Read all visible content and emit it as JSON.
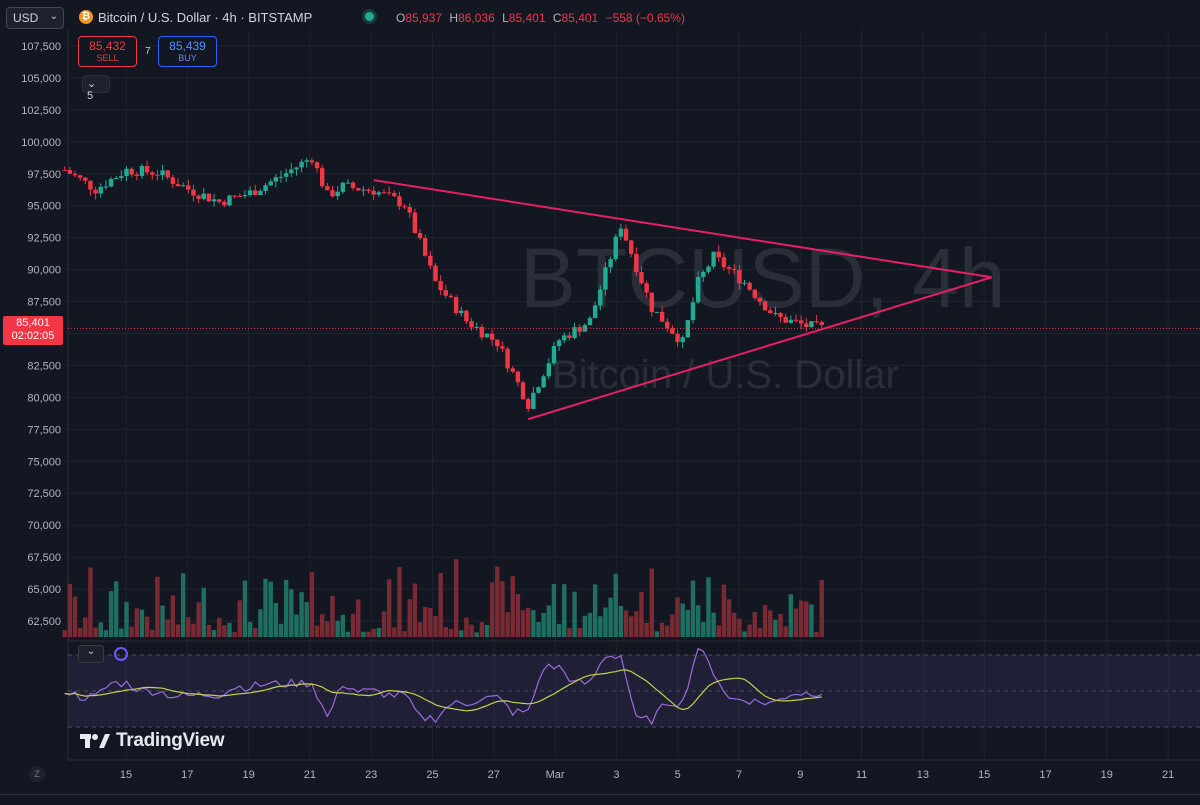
{
  "header": {
    "currency": "USD",
    "symbol_title": "Bitcoin / U.S. Dollar · 4h · BITSTAMP",
    "ohlc": [
      {
        "k": "O",
        "v": "85,937"
      },
      {
        "k": "H",
        "v": "86,036"
      },
      {
        "k": "L",
        "v": "85,401"
      },
      {
        "k": "C",
        "v": "85,401"
      }
    ],
    "change": "−558 (−0.65%)"
  },
  "trade": {
    "sell_price": "85,432",
    "sell_label": "SELL",
    "spread": "7",
    "buy_price": "85,439",
    "buy_label": "BUY"
  },
  "indicators_count": "5",
  "last_price": "85,401",
  "countdown": "02:02:05",
  "watermark": {
    "ticker": "BTCUSD, 4h",
    "name": "Bitcoin / U.S. Dollar"
  },
  "brand": "TradingView",
  "z_label": "Z",
  "colors": {
    "up": "#22ab94",
    "down": "#f23645",
    "trendline": "#e91e63",
    "rsi": "#9c6ade",
    "rsi_ma": "#c4d14a",
    "background": "#131722"
  },
  "chart_data": {
    "type": "candlestick",
    "title": "Bitcoin / U.S. Dollar · 4h · BITSTAMP",
    "y_ticks": [
      "107,500",
      "105,000",
      "102,500",
      "100,000",
      "97,500",
      "95,000",
      "92,500",
      "90,000",
      "87,500",
      "85,000",
      "82,500",
      "80,000",
      "77,500",
      "75,000",
      "72,500",
      "70,000",
      "67,500",
      "65,000",
      "62,500"
    ],
    "ylim": [
      61250,
      108750
    ],
    "x_ticks": [
      "15",
      "17",
      "19",
      "21",
      "23",
      "25",
      "27",
      "Mar",
      "3",
      "5",
      "7",
      "9",
      "11",
      "13",
      "15",
      "17",
      "19",
      "21"
    ],
    "price_path": [
      {
        "x": "Feb 13",
        "price": 97800
      },
      {
        "x": "Feb 14",
        "price": 96300
      },
      {
        "x": "Feb 15",
        "price": 97800
      },
      {
        "x": "Feb 16",
        "price": 97600
      },
      {
        "x": "Feb 17",
        "price": 96300
      },
      {
        "x": "Feb 18",
        "price": 95300
      },
      {
        "x": "Feb 19",
        "price": 96000
      },
      {
        "x": "Feb 20",
        "price": 97300
      },
      {
        "x": "Feb 21",
        "price": 98800
      },
      {
        "x": "Feb 21.5",
        "price": 95800
      },
      {
        "x": "Feb 22",
        "price": 96500
      },
      {
        "x": "Feb 23",
        "price": 96200
      },
      {
        "x": "Feb 24",
        "price": 95100
      },
      {
        "x": "Feb 25",
        "price": 89000
      },
      {
        "x": "Feb 26",
        "price": 86000
      },
      {
        "x": "Feb 27",
        "price": 84300
      },
      {
        "x": "Feb 28",
        "price": 79500
      },
      {
        "x": "Mar 1",
        "price": 84500
      },
      {
        "x": "Mar 2",
        "price": 86000
      },
      {
        "x": "Mar 3",
        "price": 93500
      },
      {
        "x": "Mar 4",
        "price": 87000
      },
      {
        "x": "Mar 5",
        "price": 84300
      },
      {
        "x": "Mar 5.5",
        "price": 89000
      },
      {
        "x": "Mar 6",
        "price": 91000
      },
      {
        "x": "Mar 7",
        "price": 89000
      },
      {
        "x": "Mar 8",
        "price": 86300
      },
      {
        "x": "Mar 9",
        "price": 85600
      },
      {
        "x": "Mar 9.5",
        "price": 85401
      }
    ],
    "trendlines": [
      {
        "from": {
          "x": "Feb 23",
          "price": 97000
        },
        "to": {
          "x": "Mar 15",
          "price": 89400
        }
      },
      {
        "from": {
          "x": "Feb 28",
          "price": 78300
        },
        "to": {
          "x": "Mar 15",
          "price": 89400
        }
      }
    ],
    "volume_note": "volume bars overlaid along bottom of price pane",
    "rsi_note": "RSI with moving average shown in lower pane"
  }
}
